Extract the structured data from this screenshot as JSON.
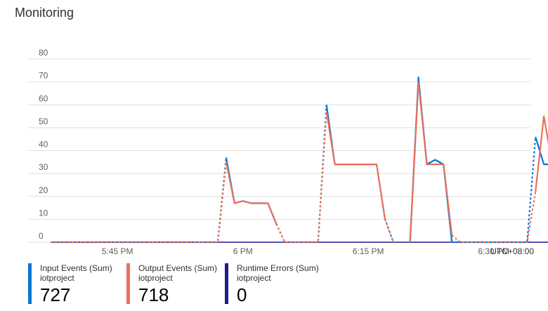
{
  "panel": {
    "title": "Monitoring"
  },
  "chart_data": {
    "type": "line",
    "title": "Monitoring",
    "ylim": [
      0,
      80
    ],
    "y_ticks": [
      0,
      10,
      20,
      30,
      40,
      50,
      60,
      70,
      80
    ],
    "x_tick_labels": [
      "5:45 PM",
      "6 PM",
      "6:15 PM",
      "6:30 PM"
    ],
    "timezone_label": "UTC+08:00",
    "grid": true,
    "legend_position": "bottom",
    "series": [
      {
        "name": "Input Events (Sum)",
        "source": "iotproject",
        "total": "727",
        "color": "#0078d4",
        "segments": [
          {
            "style": "dashed",
            "points": [
              [
                "5:37 PM",
                0
              ],
              [
                "5:57 PM",
                0
              ],
              [
                "5:58 PM",
                37
              ]
            ]
          },
          {
            "style": "solid",
            "points": [
              [
                "5:58 PM",
                37
              ],
              [
                "5:59 PM",
                17
              ],
              [
                "6:00 PM",
                18
              ],
              [
                "6:01 PM",
                17
              ],
              [
                "6:03 PM",
                17
              ],
              [
                "6:04 PM",
                8
              ]
            ]
          },
          {
            "style": "dashed",
            "points": [
              [
                "6:04 PM",
                8
              ],
              [
                "6:05 PM",
                0
              ],
              [
                "6:09 PM",
                0
              ],
              [
                "6:10 PM",
                60
              ]
            ]
          },
          {
            "style": "solid",
            "points": [
              [
                "6:10 PM",
                60
              ],
              [
                "6:11 PM",
                34
              ],
              [
                "6:16 PM",
                34
              ]
            ]
          },
          {
            "style": "dashed",
            "points": [
              [
                "6:16 PM",
                34
              ],
              [
                "6:17 PM",
                10
              ],
              [
                "6:18 PM",
                0
              ]
            ]
          },
          {
            "style": "solid",
            "points": [
              [
                "6:20 PM",
                0
              ],
              [
                "6:21 PM",
                72
              ],
              [
                "6:22 PM",
                34
              ],
              [
                "6:23 PM",
                36
              ],
              [
                "6:24 PM",
                34
              ],
              [
                "6:25 PM",
                0
              ]
            ]
          },
          {
            "style": "dashed",
            "points": [
              [
                "6:25 PM",
                0
              ],
              [
                "6:34 PM",
                0
              ],
              [
                "6:35 PM",
                46
              ]
            ]
          },
          {
            "style": "solid",
            "points": [
              [
                "6:35 PM",
                46
              ],
              [
                "6:36 PM",
                34
              ],
              [
                "6:38 PM",
                34
              ],
              [
                "6:39 PM",
                32
              ]
            ]
          }
        ]
      },
      {
        "name": "Output Events (Sum)",
        "source": "iotproject",
        "total": "718",
        "color": "#e8705c",
        "segments": [
          {
            "style": "dashed",
            "points": [
              [
                "5:37 PM",
                0
              ],
              [
                "5:57 PM",
                0
              ],
              [
                "5:58 PM",
                35
              ]
            ]
          },
          {
            "style": "solid",
            "points": [
              [
                "5:58 PM",
                35
              ],
              [
                "5:59 PM",
                17
              ],
              [
                "6:00 PM",
                18
              ],
              [
                "6:01 PM",
                17
              ],
              [
                "6:03 PM",
                17
              ],
              [
                "6:04 PM",
                8
              ]
            ]
          },
          {
            "style": "dashed",
            "points": [
              [
                "6:04 PM",
                8
              ],
              [
                "6:05 PM",
                0
              ],
              [
                "6:09 PM",
                0
              ],
              [
                "6:10 PM",
                57
              ]
            ]
          },
          {
            "style": "solid",
            "points": [
              [
                "6:10 PM",
                57
              ],
              [
                "6:11 PM",
                34
              ],
              [
                "6:16 PM",
                34
              ],
              [
                "6:17 PM",
                10
              ]
            ]
          },
          {
            "style": "dashed",
            "points": [
              [
                "6:17 PM",
                10
              ],
              [
                "6:18 PM",
                0
              ]
            ]
          },
          {
            "style": "solid",
            "points": [
              [
                "6:20 PM",
                0
              ],
              [
                "6:21 PM",
                70
              ],
              [
                "6:22 PM",
                34
              ],
              [
                "6:23 PM",
                34
              ],
              [
                "6:24 PM",
                34
              ],
              [
                "6:25 PM",
                3
              ]
            ]
          },
          {
            "style": "dashed",
            "points": [
              [
                "6:25 PM",
                3
              ],
              [
                "6:26 PM",
                0
              ],
              [
                "6:34 PM",
                0
              ],
              [
                "6:35 PM",
                22
              ]
            ]
          },
          {
            "style": "solid",
            "points": [
              [
                "6:35 PM",
                22
              ],
              [
                "6:36 PM",
                55
              ],
              [
                "6:37 PM",
                34
              ],
              [
                "6:38 PM",
                34
              ],
              [
                "6:39 PM",
                32
              ]
            ]
          }
        ]
      },
      {
        "name": "Runtime Errors (Sum)",
        "source": "iotproject",
        "total": "0",
        "color": "#1f1a8f",
        "segments": [
          {
            "style": "solid",
            "points": [
              [
                "5:37 PM",
                0
              ],
              [
                "6:39 PM",
                0
              ]
            ]
          }
        ]
      }
    ]
  }
}
